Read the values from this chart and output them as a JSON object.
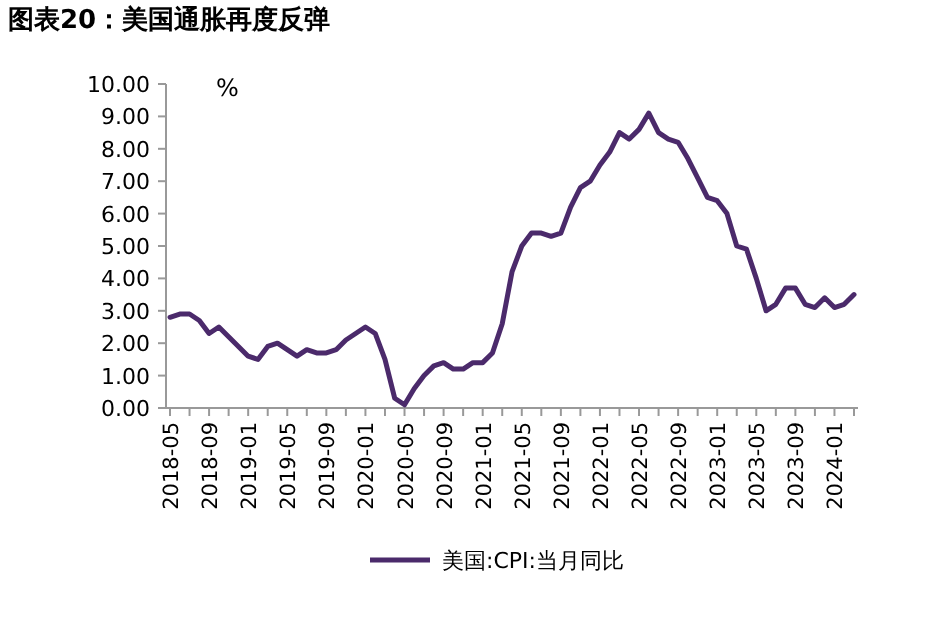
{
  "chart_data": {
    "type": "line",
    "title": "图表20：美国通胀再度反弹",
    "ylabel": "%",
    "x": [
      "2018-05",
      "2018-06",
      "2018-07",
      "2018-08",
      "2018-09",
      "2018-10",
      "2018-11",
      "2018-12",
      "2019-01",
      "2019-02",
      "2019-03",
      "2019-04",
      "2019-05",
      "2019-06",
      "2019-07",
      "2019-08",
      "2019-09",
      "2019-10",
      "2019-11",
      "2019-12",
      "2020-01",
      "2020-02",
      "2020-03",
      "2020-04",
      "2020-05",
      "2020-06",
      "2020-07",
      "2020-08",
      "2020-09",
      "2020-10",
      "2020-11",
      "2020-12",
      "2021-01",
      "2021-02",
      "2021-03",
      "2021-04",
      "2021-05",
      "2021-06",
      "2021-07",
      "2021-08",
      "2021-09",
      "2021-10",
      "2021-11",
      "2021-12",
      "2022-01",
      "2022-02",
      "2022-03",
      "2022-04",
      "2022-05",
      "2022-06",
      "2022-07",
      "2022-08",
      "2022-09",
      "2022-10",
      "2022-11",
      "2022-12",
      "2023-01",
      "2023-02",
      "2023-03",
      "2023-04",
      "2023-05",
      "2023-06",
      "2023-07",
      "2023-08",
      "2023-09",
      "2023-10",
      "2023-11",
      "2023-12",
      "2024-01",
      "2024-02",
      "2024-03"
    ],
    "series": [
      {
        "name": "美国:CPI:当月同比",
        "color": "#4b2a6b",
        "values": [
          2.8,
          2.9,
          2.9,
          2.7,
          2.3,
          2.5,
          2.2,
          1.9,
          1.6,
          1.5,
          1.9,
          2.0,
          1.8,
          1.6,
          1.8,
          1.7,
          1.7,
          1.8,
          2.1,
          2.3,
          2.5,
          2.3,
          1.5,
          0.3,
          0.1,
          0.6,
          1.0,
          1.3,
          1.4,
          1.2,
          1.2,
          1.4,
          1.4,
          1.7,
          2.6,
          4.2,
          5.0,
          5.4,
          5.4,
          5.3,
          5.4,
          6.2,
          6.8,
          7.0,
          7.5,
          7.9,
          8.5,
          8.3,
          8.6,
          9.1,
          8.5,
          8.3,
          8.2,
          7.7,
          7.1,
          6.5,
          6.4,
          6.0,
          5.0,
          4.9,
          4.0,
          3.0,
          3.2,
          3.7,
          3.7,
          3.2,
          3.1,
          3.4,
          3.1,
          3.2,
          3.5
        ]
      }
    ],
    "xlim": [
      "2018-05",
      "2024-03"
    ],
    "xticks": [
      {
        "value": "2018-05",
        "label": "2018-05"
      },
      {
        "value": "2018-07",
        "label": null
      },
      {
        "value": "2018-09",
        "label": "2018-09"
      },
      {
        "value": "2018-11",
        "label": null
      },
      {
        "value": "2019-01",
        "label": "2019-01"
      },
      {
        "value": "2019-03",
        "label": null
      },
      {
        "value": "2019-05",
        "label": "2019-05"
      },
      {
        "value": "2019-07",
        "label": null
      },
      {
        "value": "2019-09",
        "label": "2019-09"
      },
      {
        "value": "2019-11",
        "label": null
      },
      {
        "value": "2020-01",
        "label": "2020-01"
      },
      {
        "value": "2020-03",
        "label": null
      },
      {
        "value": "2020-05",
        "label": "2020-05"
      },
      {
        "value": "2020-07",
        "label": null
      },
      {
        "value": "2020-09",
        "label": "2020-09"
      },
      {
        "value": "2020-11",
        "label": null
      },
      {
        "value": "2021-01",
        "label": "2021-01"
      },
      {
        "value": "2021-03",
        "label": null
      },
      {
        "value": "2021-05",
        "label": "2021-05"
      },
      {
        "value": "2021-07",
        "label": null
      },
      {
        "value": "2021-09",
        "label": "2021-09"
      },
      {
        "value": "2021-11",
        "label": null
      },
      {
        "value": "2022-01",
        "label": "2022-01"
      },
      {
        "value": "2022-03",
        "label": null
      },
      {
        "value": "2022-05",
        "label": "2022-05"
      },
      {
        "value": "2022-07",
        "label": null
      },
      {
        "value": "2022-09",
        "label": "2022-09"
      },
      {
        "value": "2022-11",
        "label": null
      },
      {
        "value": "2023-01",
        "label": "2023-01"
      },
      {
        "value": "2023-03",
        "label": null
      },
      {
        "value": "2023-05",
        "label": "2023-05"
      },
      {
        "value": "2023-07",
        "label": null
      },
      {
        "value": "2023-09",
        "label": "2023-09"
      },
      {
        "value": "2023-11",
        "label": null
      },
      {
        "value": "2024-01",
        "label": "2024-01"
      },
      {
        "value": "2024-03",
        "label": null
      }
    ],
    "ylim": [
      0,
      10
    ],
    "yticks": [
      {
        "value": 0,
        "label": "0.00"
      },
      {
        "value": 1,
        "label": "1.00"
      },
      {
        "value": 2,
        "label": "2.00"
      },
      {
        "value": 3,
        "label": "3.00"
      },
      {
        "value": 4,
        "label": "4.00"
      },
      {
        "value": 5,
        "label": "5.00"
      },
      {
        "value": 6,
        "label": "6.00"
      },
      {
        "value": 7,
        "label": "7.00"
      },
      {
        "value": 8,
        "label": "8.00"
      },
      {
        "value": 9,
        "label": "9.00"
      },
      {
        "value": 10,
        "label": "10.00"
      }
    ],
    "grid": false,
    "legend": "bottom",
    "marker": "none",
    "line_style": "solid"
  }
}
